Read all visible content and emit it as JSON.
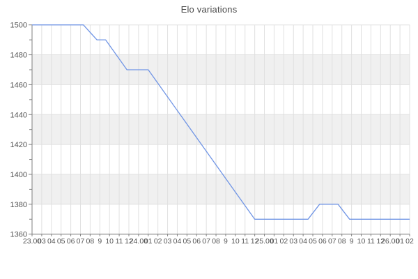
{
  "title": "Elo variations",
  "chart_data": {
    "type": "line",
    "title": "Elo variations",
    "xlabel": "",
    "ylabel": "",
    "ylim": [
      1360,
      1500
    ],
    "y_major_ticks": [
      1360,
      1380,
      1400,
      1420,
      1440,
      1460,
      1480,
      1500
    ],
    "y_minor_step": 10,
    "x_unit": "hourly game ticks; day boundaries labelled DD.00",
    "x_tick_labels": [
      "23.00",
      "03",
      "04",
      "05",
      "06",
      "07",
      "08",
      "9",
      "10",
      "11",
      "12",
      "24.00",
      "01",
      "02",
      "03",
      "04",
      "05",
      "06",
      "07",
      "08",
      "9",
      "10",
      "11",
      "12",
      "25.00",
      "01",
      "02",
      "03",
      "04",
      "05",
      "06",
      "07",
      "08",
      "9",
      "10",
      "11",
      "12",
      "26.00",
      "01",
      "02"
    ],
    "grid": true,
    "legend": "none",
    "alternating_bands": true,
    "gray_band_ranges": [
      [
        1480,
        1460
      ],
      [
        1440,
        1420
      ],
      [
        1400,
        1380
      ]
    ],
    "series": [
      {
        "name": "Elo",
        "color": "#7095e5",
        "points": [
          [
            0,
            1500
          ],
          [
            5.3,
            1500
          ],
          [
            6.7,
            1490
          ],
          [
            7.6,
            1490
          ],
          [
            9.8,
            1470
          ],
          [
            12,
            1470
          ],
          [
            23,
            1370
          ],
          [
            28.5,
            1370
          ],
          [
            29.7,
            1380
          ],
          [
            31.6,
            1380
          ],
          [
            32.8,
            1370
          ],
          [
            39,
            1370
          ]
        ]
      }
    ],
    "colors": {
      "band": "#f0f0f0",
      "grid": "#e0e0e0",
      "axis": "#7f7f7f",
      "tick_text": "#555555",
      "title_text": "#4a4a4a",
      "line": "#7095e5"
    }
  }
}
